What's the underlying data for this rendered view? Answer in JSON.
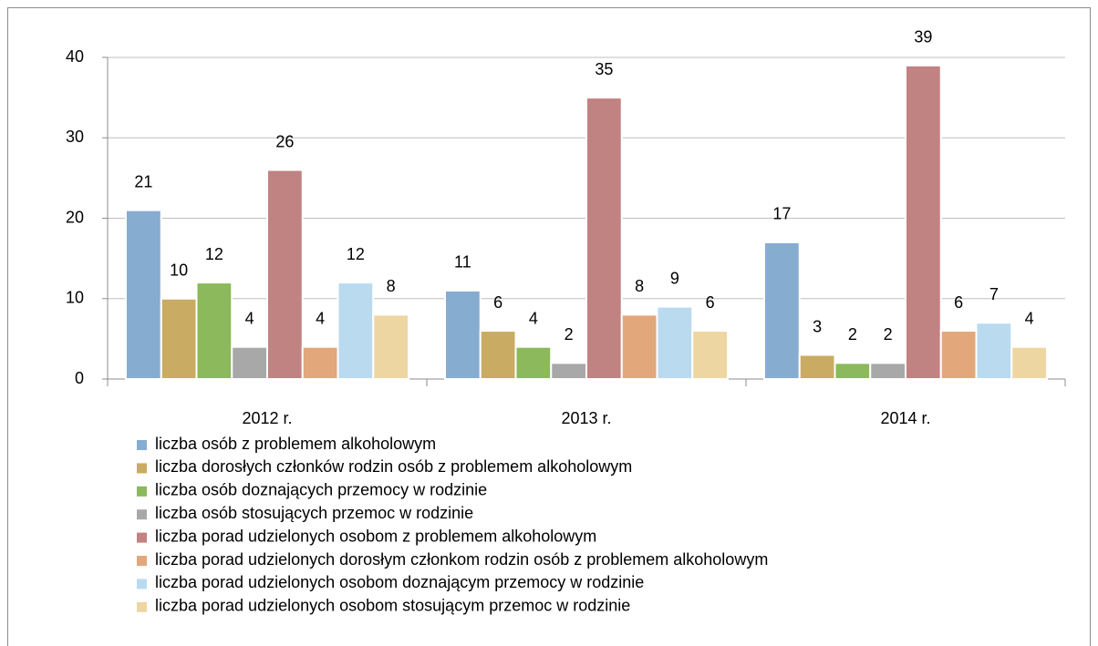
{
  "chart_data": {
    "type": "bar",
    "categories": [
      "2012 r.",
      "2013 r.",
      "2014 r."
    ],
    "series": [
      {
        "name": "liczba osób z problemem alkoholowym",
        "color": "#86acd0",
        "values": [
          21,
          11,
          17
        ]
      },
      {
        "name": "liczba dorosłych członków rodzin osób z problemem alkoholowym",
        "color": "#c9ab64",
        "values": [
          10,
          6,
          3
        ]
      },
      {
        "name": "liczba osób doznających przemocy w rodzinie",
        "color": "#8bb95b",
        "values": [
          12,
          4,
          2
        ]
      },
      {
        "name": "liczba osób stosujących przemoc w rodzinie",
        "color": "#a8a8a8",
        "values": [
          4,
          2,
          2
        ]
      },
      {
        "name": "liczba porad udzielonych osobom z problemem alkoholowym",
        "color": "#c18282",
        "values": [
          26,
          35,
          39
        ]
      },
      {
        "name": "liczba porad udzielonych dorosłym członkom rodzin osób z problemem alkoholowym",
        "color": "#e2a77b",
        "values": [
          4,
          8,
          6
        ]
      },
      {
        "name": "liczba porad udzielonych osobom doznającym przemocy w rodzinie",
        "color": "#badaf0",
        "values": [
          12,
          9,
          7
        ]
      },
      {
        "name": "liczba porad udzielonych osobom stosującym przemoc w rodzinie",
        "color": "#edd6a2",
        "values": [
          8,
          6,
          4
        ]
      }
    ],
    "ylim": [
      0,
      40
    ],
    "yticks": [
      0,
      10,
      20,
      30,
      40
    ],
    "grid": true,
    "legend": "bottom"
  }
}
